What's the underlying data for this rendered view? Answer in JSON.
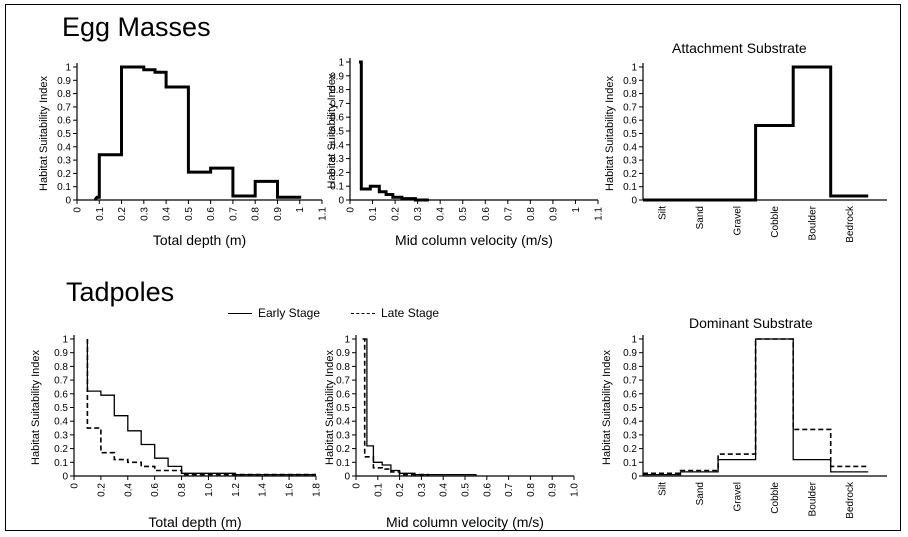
{
  "sections": {
    "egg_masses": "Egg Masses",
    "tadpoles": "Tadpoles"
  },
  "legend": {
    "early": "Early Stage",
    "late": "Late Stage"
  },
  "chart_data": [
    {
      "id": "egg-depth",
      "type": "step",
      "xlabel": "Total depth (m)",
      "ylabel": "Habitat Suitability Index",
      "xlim": [
        0,
        1.1
      ],
      "ylim": [
        0,
        1
      ],
      "xticks": [
        0,
        0.1,
        0.2,
        0.3,
        0.4,
        0.5,
        0.6,
        0.7,
        0.8,
        0.9,
        1,
        1.1
      ],
      "yticks": [
        0,
        0.1,
        0.2,
        0.3,
        0.4,
        0.5,
        0.6,
        0.7,
        0.8,
        0.9,
        1
      ],
      "series": [
        {
          "style": "thick",
          "points": [
            [
              0.08,
              0
            ],
            [
              0.09,
              0.02
            ],
            [
              0.1,
              0.02
            ],
            [
              0.1,
              0.34
            ],
            [
              0.2,
              0.34
            ],
            [
              0.2,
              1
            ],
            [
              0.3,
              1
            ],
            [
              0.3,
              0.98
            ],
            [
              0.35,
              0.98
            ],
            [
              0.35,
              0.96
            ],
            [
              0.4,
              0.96
            ],
            [
              0.4,
              0.85
            ],
            [
              0.5,
              0.85
            ],
            [
              0.5,
              0.21
            ],
            [
              0.6,
              0.21
            ],
            [
              0.6,
              0.24
            ],
            [
              0.7,
              0.24
            ],
            [
              0.7,
              0.03
            ],
            [
              0.8,
              0.03
            ],
            [
              0.8,
              0.14
            ],
            [
              0.9,
              0.14
            ],
            [
              0.9,
              0.02
            ],
            [
              1.0,
              0.02
            ],
            [
              1.0,
              0.01
            ]
          ]
        }
      ]
    },
    {
      "id": "egg-velocity",
      "type": "step",
      "xlabel": "Mid column velocity (m/s)",
      "ylabel": "Habitat Suitability Index",
      "xlim": [
        0,
        1.1
      ],
      "ylim": [
        0,
        1
      ],
      "xticks": [
        0,
        0.1,
        0.2,
        0.3,
        0.4,
        0.5,
        0.6,
        0.7,
        0.8,
        0.9,
        1,
        1.1
      ],
      "yticks": [
        0,
        0.1,
        0.2,
        0.3,
        0.4,
        0.5,
        0.6,
        0.7,
        0.8,
        0.9,
        1
      ],
      "series": [
        {
          "style": "thick",
          "points": [
            [
              0.04,
              1
            ],
            [
              0.05,
              1
            ],
            [
              0.05,
              0.08
            ],
            [
              0.09,
              0.08
            ],
            [
              0.09,
              0.1
            ],
            [
              0.13,
              0.1
            ],
            [
              0.13,
              0.06
            ],
            [
              0.16,
              0.06
            ],
            [
              0.16,
              0.04
            ],
            [
              0.19,
              0.04
            ],
            [
              0.19,
              0.02
            ],
            [
              0.23,
              0.02
            ],
            [
              0.23,
              0.01
            ],
            [
              0.29,
              0.01
            ],
            [
              0.29,
              0
            ],
            [
              0.35,
              0
            ]
          ]
        }
      ]
    },
    {
      "id": "attachment-substrate",
      "type": "step",
      "title": "Attachment Substrate",
      "ylabel": "Habitat Suitability Index",
      "categories": [
        "Silt",
        "Sand",
        "Gravel",
        "Cobble",
        "Boulder",
        "Bedrock"
      ],
      "ylim": [
        0,
        1
      ],
      "yticks": [
        0,
        0.1,
        0.2,
        0.3,
        0.4,
        0.5,
        0.6,
        0.7,
        0.8,
        0.9,
        1
      ],
      "values": [
        0,
        0,
        0,
        0.56,
        1,
        0.03
      ]
    },
    {
      "id": "tad-depth",
      "type": "step",
      "xlabel": "Total depth (m)",
      "ylabel": "Habitat Suitability Index",
      "xlim": [
        0,
        1.8
      ],
      "ylim": [
        0,
        1
      ],
      "xticks": [
        0,
        0.2,
        0.4,
        0.6,
        0.8,
        1.0,
        1.2,
        1.4,
        1.6,
        1.8
      ],
      "xtick_labels": [
        "0",
        "0.2",
        "0.4",
        "0.6",
        "0.8",
        "1.0",
        "1.2",
        "1.4",
        "1.6",
        "1.8"
      ],
      "yticks": [
        0,
        0.1,
        0.2,
        0.3,
        0.4,
        0.5,
        0.6,
        0.7,
        0.8,
        0.9,
        1
      ],
      "series": [
        {
          "name": "Early Stage",
          "style": "solid",
          "points": [
            [
              0.1,
              1
            ],
            [
              0.1,
              0.62
            ],
            [
              0.2,
              0.62
            ],
            [
              0.2,
              0.59
            ],
            [
              0.3,
              0.59
            ],
            [
              0.3,
              0.44
            ],
            [
              0.4,
              0.44
            ],
            [
              0.4,
              0.33
            ],
            [
              0.5,
              0.33
            ],
            [
              0.5,
              0.23
            ],
            [
              0.6,
              0.23
            ],
            [
              0.6,
              0.13
            ],
            [
              0.7,
              0.13
            ],
            [
              0.7,
              0.07
            ],
            [
              0.8,
              0.07
            ],
            [
              0.8,
              0.02
            ],
            [
              1.2,
              0.02
            ],
            [
              1.2,
              0.01
            ],
            [
              1.8,
              0.01
            ]
          ]
        },
        {
          "name": "Late Stage",
          "style": "dashed",
          "points": [
            [
              0.1,
              1
            ],
            [
              0.1,
              0.35
            ],
            [
              0.2,
              0.35
            ],
            [
              0.2,
              0.17
            ],
            [
              0.3,
              0.17
            ],
            [
              0.3,
              0.12
            ],
            [
              0.4,
              0.12
            ],
            [
              0.4,
              0.1
            ],
            [
              0.5,
              0.1
            ],
            [
              0.5,
              0.07
            ],
            [
              0.6,
              0.07
            ],
            [
              0.6,
              0.04
            ],
            [
              0.8,
              0.04
            ],
            [
              0.8,
              0.01
            ],
            [
              1.8,
              0.01
            ]
          ]
        }
      ]
    },
    {
      "id": "tad-velocity",
      "type": "step",
      "xlabel": "Mid column velocity (m/s)",
      "ylabel": "Habitat Suitability Index",
      "xlim": [
        0,
        1.0
      ],
      "ylim": [
        0,
        1
      ],
      "xticks": [
        0,
        0.1,
        0.2,
        0.3,
        0.4,
        0.5,
        0.6,
        0.7,
        0.8,
        0.9,
        1.0
      ],
      "xtick_labels": [
        "0",
        "0.1",
        "0.2",
        "0.3",
        "0.4",
        "0.5",
        "0.6",
        "0.7",
        "0.8",
        "0.9",
        "1.0"
      ],
      "yticks": [
        0,
        0.1,
        0.2,
        0.3,
        0.4,
        0.5,
        0.6,
        0.7,
        0.8,
        0.9,
        1
      ],
      "series": [
        {
          "name": "Early Stage",
          "style": "solid",
          "points": [
            [
              0.04,
              1
            ],
            [
              0.05,
              1
            ],
            [
              0.05,
              0.22
            ],
            [
              0.08,
              0.22
            ],
            [
              0.08,
              0.1
            ],
            [
              0.12,
              0.1
            ],
            [
              0.12,
              0.08
            ],
            [
              0.16,
              0.08
            ],
            [
              0.16,
              0.04
            ],
            [
              0.2,
              0.04
            ],
            [
              0.2,
              0.02
            ],
            [
              0.27,
              0.02
            ],
            [
              0.27,
              0.01
            ],
            [
              0.55,
              0.01
            ],
            [
              0.55,
              0
            ]
          ]
        },
        {
          "name": "Late Stage",
          "style": "dashed",
          "points": [
            [
              0.03,
              1
            ],
            [
              0.04,
              1
            ],
            [
              0.04,
              0.14
            ],
            [
              0.08,
              0.14
            ],
            [
              0.08,
              0.06
            ],
            [
              0.12,
              0.06
            ],
            [
              0.12,
              0.05
            ],
            [
              0.16,
              0.05
            ],
            [
              0.16,
              0.03
            ],
            [
              0.2,
              0.03
            ],
            [
              0.2,
              0.01
            ],
            [
              0.33,
              0.01
            ],
            [
              0.33,
              0
            ]
          ]
        }
      ]
    },
    {
      "id": "dominant-substrate",
      "type": "step",
      "title": "Dominant Substrate",
      "ylabel": "Habitat Suitability Index",
      "categories": [
        "Silt",
        "Sand",
        "Gravel",
        "Cobble",
        "Boulder",
        "Bedrock"
      ],
      "ylim": [
        0,
        1
      ],
      "yticks": [
        0,
        0.1,
        0.2,
        0.3,
        0.4,
        0.5,
        0.6,
        0.7,
        0.8,
        0.9,
        1
      ],
      "series": [
        {
          "name": "Early Stage",
          "style": "solid",
          "values": [
            0.01,
            0.03,
            0.12,
            1,
            0.12,
            0.03
          ]
        },
        {
          "name": "Late Stage",
          "style": "dashed",
          "values": [
            0.02,
            0.04,
            0.16,
            1,
            0.34,
            0.07
          ]
        }
      ]
    }
  ]
}
